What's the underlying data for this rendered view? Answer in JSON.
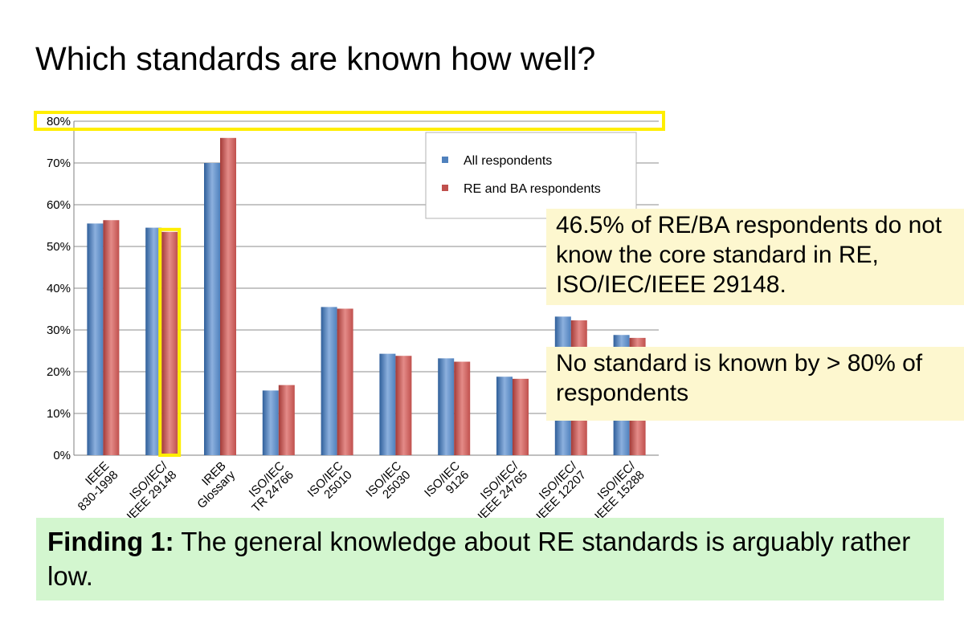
{
  "slide": {
    "title": "Which standards are known how well?"
  },
  "callouts": [
    "46.5% of RE/BA respondents do not know the core standard in RE, ISO/IEC/IEEE 29148.",
    "No standard is known by > 80% of respondents"
  ],
  "finding": {
    "label": "Finding 1:",
    "text": " The general knowledge about RE standards is arguably rather low."
  },
  "highlight_color": "#ffee00",
  "chart_data": {
    "type": "bar",
    "categories": [
      [
        "IEEE",
        "830-1998"
      ],
      [
        "ISO/IEC/",
        "IEEE 29148"
      ],
      [
        "IREB",
        "Glossary"
      ],
      [
        "ISO/IEC",
        "TR 24766"
      ],
      [
        "ISO/IEC",
        "25010"
      ],
      [
        "ISO/IEC",
        "25030"
      ],
      [
        "ISO/IEC",
        "9126"
      ],
      [
        "ISO/IEC/",
        "IEEE 24765"
      ],
      [
        "ISO/IEC/",
        "IEEE 12207"
      ],
      [
        "ISO/IEC/",
        "IEEE 15288"
      ]
    ],
    "series": [
      {
        "name": "All respondents",
        "color": "#4f81bd",
        "values": [
          55.5,
          54.5,
          70,
          15.5,
          35.5,
          24.3,
          23.2,
          18.8,
          33.2,
          28.8
        ]
      },
      {
        "name": "RE and BA respondents",
        "color": "#c0504d",
        "values": [
          56.3,
          53.5,
          76,
          16.8,
          35.1,
          23.8,
          22.4,
          18.3,
          32.3,
          28.1
        ]
      }
    ],
    "yticks": [
      "0%",
      "10%",
      "20%",
      "30%",
      "40%",
      "50%",
      "60%",
      "70%",
      "80%"
    ],
    "ylim": [
      0,
      80
    ],
    "grid": true,
    "legend": "top-right",
    "highlights": [
      "80% gridline",
      "RE and BA respondents bar for ISO/IEC/IEEE 29148"
    ]
  }
}
